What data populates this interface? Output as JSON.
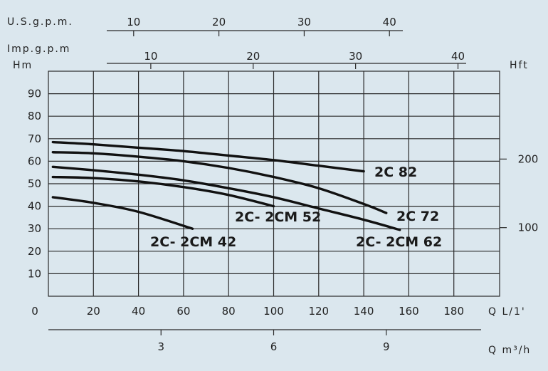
{
  "chart_data": {
    "type": "line",
    "xlabel": "Q L/1'",
    "ylabel": "Hm",
    "secondary_y_label": "Hft",
    "top_axis_1_label": "U.S.g.p.m.",
    "top_axis_2_label": "Imp.g.p.m",
    "bottom_axis_2_label": "Q m³/h",
    "origin_label": "0",
    "xlim": [
      0,
      200
    ],
    "ylim": [
      0,
      100
    ],
    "x_ticks": [
      20,
      40,
      60,
      80,
      100,
      120,
      140,
      160,
      180
    ],
    "y_ticks": [
      10,
      20,
      30,
      40,
      50,
      60,
      70,
      80,
      90
    ],
    "hft_ticks": [
      {
        "label": "100",
        "value_m": 30.48
      },
      {
        "label": "200",
        "value_m": 60.96
      }
    ],
    "usgpm_ticks": [
      {
        "label": "10",
        "lpm": 37.85
      },
      {
        "label": "20",
        "lpm": 75.7
      },
      {
        "label": "30",
        "lpm": 113.56
      },
      {
        "label": "40",
        "lpm": 151.41
      }
    ],
    "impgpm_ticks": [
      {
        "label": "10",
        "lpm": 45.46
      },
      {
        "label": "20",
        "lpm": 90.92
      },
      {
        "label": "30",
        "lpm": 136.38
      },
      {
        "label": "40",
        "lpm": 181.84
      }
    ],
    "m3h_ticks": [
      {
        "label": "3",
        "lpm": 50
      },
      {
        "label": "6",
        "lpm": 100
      },
      {
        "label": "9",
        "lpm": 150
      }
    ],
    "grid": true,
    "series": [
      {
        "name": "2C 82",
        "x": [
          2,
          20,
          40,
          60,
          80,
          100,
          120,
          140
        ],
        "y": [
          68.5,
          67.5,
          66,
          64.5,
          62.5,
          60.5,
          58,
          55.5
        ]
      },
      {
        "name": "2C 72",
        "x": [
          2,
          20,
          40,
          60,
          80,
          100,
          120,
          140,
          150
        ],
        "y": [
          64,
          63.5,
          62,
          60,
          57,
          53,
          48,
          41,
          37
        ]
      },
      {
        "name": "2C- 2CM 62",
        "x": [
          2,
          20,
          40,
          60,
          80,
          100,
          120,
          140,
          156
        ],
        "y": [
          57.5,
          56,
          54,
          51.5,
          48,
          44,
          39,
          34,
          29.5
        ]
      },
      {
        "name": "2C- 2CM 52",
        "x": [
          2,
          20,
          40,
          60,
          80,
          100
        ],
        "y": [
          53,
          52.5,
          51,
          48.5,
          45,
          40
        ]
      },
      {
        "name": "2C- 2CM 42",
        "x": [
          2,
          20,
          40,
          64
        ],
        "y": [
          44,
          41.5,
          37.5,
          30
        ]
      }
    ]
  }
}
